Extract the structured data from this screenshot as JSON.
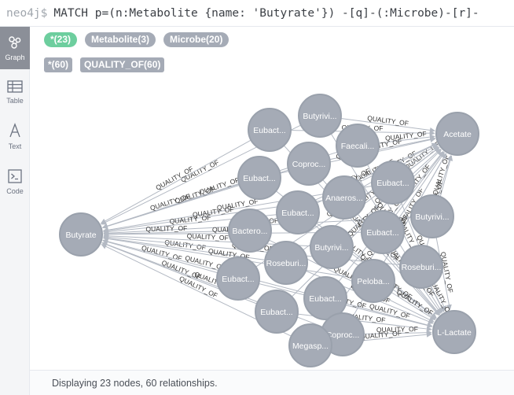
{
  "query": {
    "prompt": "neo4j$",
    "text": "MATCH p=(n:Metabolite {name: 'Butyrate'}) -[q]-(:Microbe)-[r]-"
  },
  "sidebar": [
    {
      "label": "Graph",
      "icon": "graph-icon",
      "active": true
    },
    {
      "label": "Table",
      "icon": "table-icon",
      "active": false
    },
    {
      "label": "Text",
      "icon": "text-icon",
      "active": false
    },
    {
      "label": "Code",
      "icon": "code-icon",
      "active": false
    }
  ],
  "legend": {
    "node_labels": [
      {
        "text": "*(23)"
      },
      {
        "text": "Metabolite(3)"
      },
      {
        "text": "Microbe(20)"
      }
    ],
    "rel_types": [
      {
        "text": "*(60)"
      },
      {
        "text": "QUALITY_OF(60)"
      }
    ]
  },
  "graph": {
    "rel_label": "QUALITY_OF",
    "metabolites": [
      "Butyrate",
      "Acetate",
      "L-Lactate"
    ],
    "microbes": [
      "Butyrivi...",
      "Eubact...",
      "Faecali...",
      "Coproc...",
      "Eubact...",
      "Eubact...",
      "Anaeros...",
      "Eubact...",
      "Butyrivi...",
      "Bactero...",
      "Eubact...",
      "Butyrivi...",
      "Roseburi...",
      "Roseburi...",
      "Eubact...",
      "Peloba...",
      "Eubact...",
      "Eubact...",
      "Coproc...",
      "Megasp..."
    ]
  },
  "status": "Displaying 23 nodes, 60 relationships."
}
